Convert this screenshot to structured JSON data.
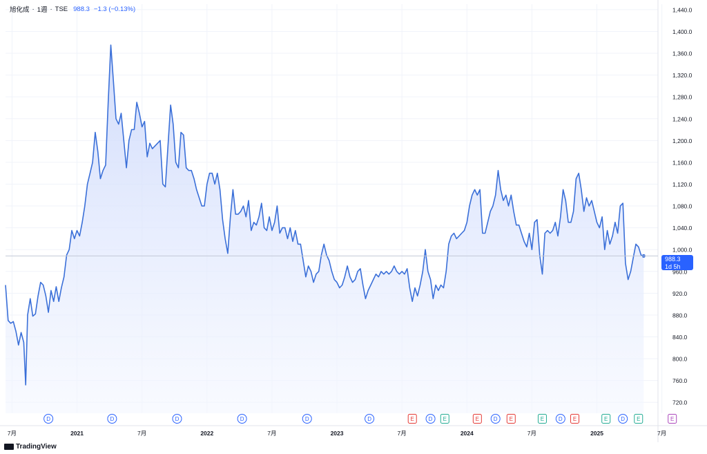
{
  "header": {
    "symbol": "旭化成",
    "sep1": "·",
    "interval": "1週",
    "sep2": "·",
    "exchange": "TSE",
    "price": "988.3",
    "change": "−1.3 (−0.13%)"
  },
  "price_tag": {
    "price": "988.3",
    "countdown": "1d 5h"
  },
  "branding": {
    "logo_text": "TradingView"
  },
  "colors": {
    "line": "#3a6fd8",
    "fill_top": "#c9d6fb",
    "fill_bottom": "#f4f7ff",
    "accent": "#2962ff",
    "grid": "#f0f3fa",
    "dividend": "#2962ff",
    "earnings_red": "#e53935",
    "earnings_green": "#22ab94",
    "event_purple": "#ab47bc"
  },
  "chart_data": {
    "type": "area",
    "title": "旭化成 · 1週 · TSE",
    "xlabel": "",
    "ylabel": "",
    "ylim": [
      700,
      1450
    ],
    "y_ticks": [
      "720.0",
      "760.0",
      "800.0",
      "840.0",
      "880.0",
      "920.0",
      "960.0",
      "1,000.0",
      "1,040.0",
      "1,080.0",
      "1,120.0",
      "1,160.0",
      "1,200.0",
      "1,240.0",
      "1,280.0",
      "1,320.0",
      "1,360.0",
      "1,400.0",
      "1,440.0"
    ],
    "x_ticks": [
      {
        "label": "7月",
        "t": 2020.5
      },
      {
        "label": "2021",
        "t": 2021.0
      },
      {
        "label": "7月",
        "t": 2021.5
      },
      {
        "label": "2022",
        "t": 2022.0
      },
      {
        "label": "7月",
        "t": 2022.5
      },
      {
        "label": "2023",
        "t": 2023.0
      },
      {
        "label": "7月",
        "t": 2023.5
      },
      {
        "label": "2024",
        "t": 2024.0
      },
      {
        "label": "7月",
        "t": 2024.5
      },
      {
        "label": "2025",
        "t": 2025.0
      },
      {
        "label": "7月",
        "t": 2025.5
      }
    ],
    "grid": true,
    "last_price": 988.3,
    "series": [
      {
        "points": [
          [
            2020.45,
            935
          ],
          [
            2020.47,
            870
          ],
          [
            2020.49,
            865
          ],
          [
            2020.51,
            868
          ],
          [
            2020.53,
            850
          ],
          [
            2020.55,
            825
          ],
          [
            2020.57,
            848
          ],
          [
            2020.59,
            830
          ],
          [
            2020.605,
            752
          ],
          [
            2020.62,
            880
          ],
          [
            2020.64,
            910
          ],
          [
            2020.66,
            878
          ],
          [
            2020.68,
            882
          ],
          [
            2020.7,
            915
          ],
          [
            2020.72,
            940
          ],
          [
            2020.74,
            935
          ],
          [
            2020.76,
            915
          ],
          [
            2020.78,
            885
          ],
          [
            2020.8,
            925
          ],
          [
            2020.82,
            905
          ],
          [
            2020.84,
            932
          ],
          [
            2020.86,
            905
          ],
          [
            2020.88,
            930
          ],
          [
            2020.9,
            950
          ],
          [
            2020.92,
            990
          ],
          [
            2020.94,
            1000
          ],
          [
            2020.96,
            1035
          ],
          [
            2020.98,
            1020
          ],
          [
            2021.0,
            1035
          ],
          [
            2021.02,
            1025
          ],
          [
            2021.04,
            1050
          ],
          [
            2021.06,
            1080
          ],
          [
            2021.08,
            1120
          ],
          [
            2021.1,
            1140
          ],
          [
            2021.12,
            1160
          ],
          [
            2021.14,
            1215
          ],
          [
            2021.16,
            1180
          ],
          [
            2021.18,
            1130
          ],
          [
            2021.2,
            1145
          ],
          [
            2021.22,
            1155
          ],
          [
            2021.24,
            1270
          ],
          [
            2021.26,
            1375
          ],
          [
            2021.28,
            1310
          ],
          [
            2021.3,
            1240
          ],
          [
            2021.32,
            1230
          ],
          [
            2021.34,
            1250
          ],
          [
            2021.36,
            1200
          ],
          [
            2021.38,
            1150
          ],
          [
            2021.4,
            1200
          ],
          [
            2021.42,
            1220
          ],
          [
            2021.44,
            1220
          ],
          [
            2021.46,
            1270
          ],
          [
            2021.48,
            1250
          ],
          [
            2021.5,
            1225
          ],
          [
            2021.52,
            1235
          ],
          [
            2021.54,
            1170
          ],
          [
            2021.56,
            1195
          ],
          [
            2021.58,
            1185
          ],
          [
            2021.6,
            1190
          ],
          [
            2021.62,
            1195
          ],
          [
            2021.64,
            1200
          ],
          [
            2021.66,
            1120
          ],
          [
            2021.68,
            1115
          ],
          [
            2021.7,
            1190
          ],
          [
            2021.72,
            1265
          ],
          [
            2021.74,
            1230
          ],
          [
            2021.76,
            1160
          ],
          [
            2021.78,
            1150
          ],
          [
            2021.8,
            1215
          ],
          [
            2021.82,
            1210
          ],
          [
            2021.84,
            1150
          ],
          [
            2021.86,
            1145
          ],
          [
            2021.88,
            1145
          ],
          [
            2021.9,
            1130
          ],
          [
            2021.92,
            1110
          ],
          [
            2021.94,
            1095
          ],
          [
            2021.96,
            1080
          ],
          [
            2021.98,
            1080
          ],
          [
            2022.0,
            1120
          ],
          [
            2022.02,
            1140
          ],
          [
            2022.04,
            1140
          ],
          [
            2022.06,
            1120
          ],
          [
            2022.08,
            1140
          ],
          [
            2022.1,
            1110
          ],
          [
            2022.12,
            1055
          ],
          [
            2022.14,
            1020
          ],
          [
            2022.16,
            993
          ],
          [
            2022.18,
            1060
          ],
          [
            2022.2,
            1110
          ],
          [
            2022.22,
            1065
          ],
          [
            2022.24,
            1065
          ],
          [
            2022.26,
            1070
          ],
          [
            2022.28,
            1080
          ],
          [
            2022.3,
            1060
          ],
          [
            2022.32,
            1090
          ],
          [
            2022.34,
            1035
          ],
          [
            2022.36,
            1050
          ],
          [
            2022.38,
            1045
          ],
          [
            2022.4,
            1060
          ],
          [
            2022.42,
            1085
          ],
          [
            2022.44,
            1040
          ],
          [
            2022.46,
            1035
          ],
          [
            2022.48,
            1060
          ],
          [
            2022.5,
            1035
          ],
          [
            2022.52,
            1050
          ],
          [
            2022.54,
            1080
          ],
          [
            2022.56,
            1030
          ],
          [
            2022.58,
            1040
          ],
          [
            2022.6,
            1040
          ],
          [
            2022.62,
            1020
          ],
          [
            2022.64,
            1040
          ],
          [
            2022.66,
            1015
          ],
          [
            2022.68,
            1035
          ],
          [
            2022.7,
            1010
          ],
          [
            2022.72,
            1010
          ],
          [
            2022.74,
            980
          ],
          [
            2022.76,
            950
          ],
          [
            2022.78,
            970
          ],
          [
            2022.8,
            960
          ],
          [
            2022.82,
            940
          ],
          [
            2022.84,
            955
          ],
          [
            2022.86,
            960
          ],
          [
            2022.88,
            990
          ],
          [
            2022.9,
            1010
          ],
          [
            2022.92,
            990
          ],
          [
            2022.94,
            980
          ],
          [
            2022.96,
            960
          ],
          [
            2022.98,
            945
          ],
          [
            2023.0,
            940
          ],
          [
            2023.02,
            930
          ],
          [
            2023.04,
            935
          ],
          [
            2023.06,
            950
          ],
          [
            2023.08,
            970
          ],
          [
            2023.1,
            950
          ],
          [
            2023.12,
            940
          ],
          [
            2023.14,
            945
          ],
          [
            2023.16,
            960
          ],
          [
            2023.18,
            965
          ],
          [
            2023.2,
            935
          ],
          [
            2023.22,
            910
          ],
          [
            2023.24,
            925
          ],
          [
            2023.26,
            935
          ],
          [
            2023.28,
            945
          ],
          [
            2023.3,
            955
          ],
          [
            2023.32,
            950
          ],
          [
            2023.34,
            960
          ],
          [
            2023.36,
            955
          ],
          [
            2023.38,
            960
          ],
          [
            2023.4,
            955
          ],
          [
            2023.42,
            960
          ],
          [
            2023.44,
            970
          ],
          [
            2023.46,
            960
          ],
          [
            2023.48,
            955
          ],
          [
            2023.5,
            960
          ],
          [
            2023.52,
            955
          ],
          [
            2023.54,
            965
          ],
          [
            2023.56,
            930
          ],
          [
            2023.58,
            905
          ],
          [
            2023.6,
            930
          ],
          [
            2023.62,
            915
          ],
          [
            2023.64,
            935
          ],
          [
            2023.66,
            960
          ],
          [
            2023.68,
            1000
          ],
          [
            2023.7,
            960
          ],
          [
            2023.72,
            945
          ],
          [
            2023.74,
            910
          ],
          [
            2023.76,
            935
          ],
          [
            2023.78,
            925
          ],
          [
            2023.8,
            935
          ],
          [
            2023.82,
            930
          ],
          [
            2023.84,
            960
          ],
          [
            2023.86,
            1010
          ],
          [
            2023.88,
            1025
          ],
          [
            2023.9,
            1030
          ],
          [
            2023.92,
            1020
          ],
          [
            2023.94,
            1025
          ],
          [
            2023.96,
            1030
          ],
          [
            2023.98,
            1035
          ],
          [
            2024.0,
            1050
          ],
          [
            2024.02,
            1080
          ],
          [
            2024.04,
            1100
          ],
          [
            2024.06,
            1110
          ],
          [
            2024.08,
            1100
          ],
          [
            2024.1,
            1110
          ],
          [
            2024.12,
            1030
          ],
          [
            2024.14,
            1030
          ],
          [
            2024.16,
            1050
          ],
          [
            2024.18,
            1070
          ],
          [
            2024.2,
            1080
          ],
          [
            2024.22,
            1100
          ],
          [
            2024.24,
            1145
          ],
          [
            2024.26,
            1110
          ],
          [
            2024.28,
            1090
          ],
          [
            2024.3,
            1100
          ],
          [
            2024.32,
            1080
          ],
          [
            2024.34,
            1100
          ],
          [
            2024.36,
            1070
          ],
          [
            2024.38,
            1045
          ],
          [
            2024.4,
            1045
          ],
          [
            2024.42,
            1030
          ],
          [
            2024.44,
            1015
          ],
          [
            2024.46,
            1005
          ],
          [
            2024.48,
            1030
          ],
          [
            2024.5,
            1000
          ],
          [
            2024.52,
            1050
          ],
          [
            2024.54,
            1055
          ],
          [
            2024.56,
            990
          ],
          [
            2024.58,
            955
          ],
          [
            2024.6,
            1030
          ],
          [
            2024.62,
            1035
          ],
          [
            2024.64,
            1030
          ],
          [
            2024.66,
            1035
          ],
          [
            2024.68,
            1050
          ],
          [
            2024.7,
            1025
          ],
          [
            2024.72,
            1060
          ],
          [
            2024.74,
            1110
          ],
          [
            2024.76,
            1090
          ],
          [
            2024.78,
            1050
          ],
          [
            2024.8,
            1050
          ],
          [
            2024.82,
            1070
          ],
          [
            2024.84,
            1130
          ],
          [
            2024.86,
            1140
          ],
          [
            2024.88,
            1110
          ],
          [
            2024.9,
            1070
          ],
          [
            2024.92,
            1095
          ],
          [
            2024.94,
            1080
          ],
          [
            2024.96,
            1090
          ],
          [
            2024.98,
            1070
          ],
          [
            2025.0,
            1050
          ],
          [
            2025.02,
            1040
          ],
          [
            2025.04,
            1060
          ],
          [
            2025.06,
            1000
          ],
          [
            2025.08,
            1035
          ],
          [
            2025.1,
            1010
          ],
          [
            2025.12,
            1025
          ],
          [
            2025.14,
            1050
          ],
          [
            2025.16,
            1030
          ],
          [
            2025.18,
            1080
          ],
          [
            2025.2,
            1085
          ],
          [
            2025.22,
            975
          ],
          [
            2025.24,
            945
          ],
          [
            2025.26,
            960
          ],
          [
            2025.28,
            985
          ],
          [
            2025.3,
            1010
          ],
          [
            2025.32,
            1005
          ],
          [
            2025.34,
            990
          ],
          [
            2025.36,
            988.3
          ]
        ]
      }
    ],
    "events": [
      {
        "type": "D",
        "t": 2020.78
      },
      {
        "type": "D",
        "t": 2021.27
      },
      {
        "type": "D",
        "t": 2021.77
      },
      {
        "type": "D",
        "t": 2022.27
      },
      {
        "type": "D",
        "t": 2022.77
      },
      {
        "type": "D",
        "t": 2023.25
      },
      {
        "type": "E",
        "t": 2023.58,
        "color": "red"
      },
      {
        "type": "D",
        "t": 2023.72
      },
      {
        "type": "E",
        "t": 2023.83,
        "color": "green"
      },
      {
        "type": "E",
        "t": 2024.08,
        "color": "red"
      },
      {
        "type": "D",
        "t": 2024.22
      },
      {
        "type": "E",
        "t": 2024.34,
        "color": "red"
      },
      {
        "type": "E",
        "t": 2024.58,
        "color": "green"
      },
      {
        "type": "D",
        "t": 2024.72
      },
      {
        "type": "E",
        "t": 2024.83,
        "color": "red"
      },
      {
        "type": "E",
        "t": 2025.07,
        "color": "green"
      },
      {
        "type": "D",
        "t": 2025.2
      },
      {
        "type": "E",
        "t": 2025.32,
        "color": "green"
      },
      {
        "type": "E",
        "t": 2025.58,
        "color": "purple"
      }
    ]
  }
}
